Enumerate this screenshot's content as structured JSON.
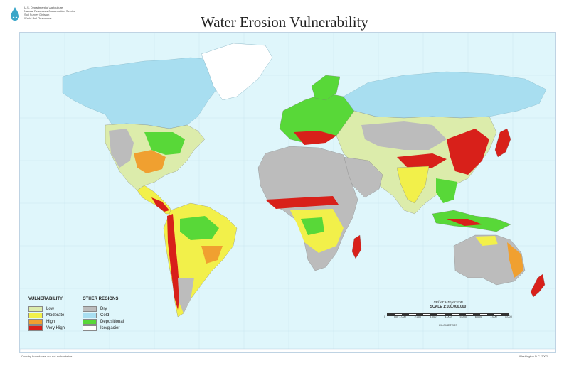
{
  "header": {
    "title": "Water Erosion Vulnerability",
    "agency_lines": [
      "U.S. Department of Agriculture",
      "Natural Resources Conservation Service",
      "Soil Survey Division",
      "World Soil Resources"
    ]
  },
  "legend": {
    "vulnerability_heading": "VULNERABILITY",
    "vulnerability_items": [
      {
        "label": "Low",
        "color": "#dcecab"
      },
      {
        "label": "Moderate",
        "color": "#f2f04a"
      },
      {
        "label": "High",
        "color": "#f0a030"
      },
      {
        "label": "Very High",
        "color": "#d8201a"
      }
    ],
    "other_heading": "OTHER REGIONS",
    "other_items": [
      {
        "label": "Dry",
        "color": "#bcbcbc"
      },
      {
        "label": "Cold",
        "color": "#a8def0"
      },
      {
        "label": "Depositional",
        "color": "#58d838"
      },
      {
        "label": "Ice/glacier",
        "color": "#ffffff"
      }
    ]
  },
  "scale": {
    "projection": "Miller Projection",
    "ratio": "SCALE 1:100,000,000",
    "ticks": [
      "0",
      "500 1,000",
      "2,000",
      "3,000",
      "4,000",
      "5,000",
      "6,000",
      "7,000",
      "8,000"
    ],
    "units": "KILOMETERS"
  },
  "footer": {
    "left": "Country boundaries are not authoritative.",
    "right": "Washington D.C. 2002"
  },
  "colors": {
    "ocean": "#dff6fb",
    "cold": "#a8def0",
    "dry": "#bcbcbc",
    "low": "#dcecab",
    "moderate": "#f2f04a",
    "high": "#f0a030",
    "very_high": "#d8201a",
    "depositional": "#58d838"
  }
}
